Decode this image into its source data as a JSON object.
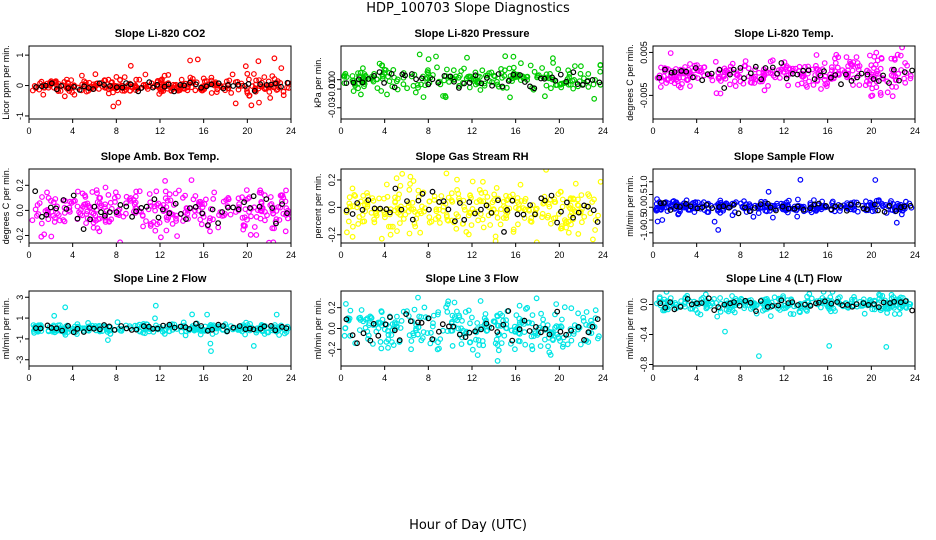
{
  "title": "HDP_100703  Slope Diagnostics",
  "x_axis_title": "Hour of Day (UTC)",
  "chart_data": [
    {
      "type": "scatter",
      "title": "Slope Li-820 CO2",
      "ylabel": "Licor ppm per min.",
      "color": "#ff0000",
      "xlim": [
        0,
        24
      ],
      "ylim": [
        -1.1,
        1.3
      ],
      "xticks": [
        0,
        4,
        8,
        12,
        16,
        20,
        24
      ],
      "yticks": [
        -1,
        0,
        1
      ],
      "ytick_labels": [
        "-1",
        "0",
        "1"
      ],
      "spread": 0.12,
      "outlier_amp": 0.9,
      "seed": 11,
      "dense": true
    },
    {
      "type": "scatter",
      "title": "Slope Li-820 Pressure",
      "ylabel": "kPa per min.",
      "color": "#00cc00",
      "xlim": [
        0,
        24
      ],
      "ylim": [
        -0.042,
        0.036
      ],
      "xticks": [
        0,
        4,
        8,
        12,
        16,
        20,
        24
      ],
      "yticks": [
        -0.03,
        -0.01,
        0.0
      ],
      "ytick_labels": [
        "-0.03",
        "-0.01",
        "0.00"
      ],
      "spread": 0.007,
      "outlier_amp": 0.03,
      "seed": 23,
      "dense": false
    },
    {
      "type": "scatter",
      "title": "Slope Li-820 Temp.",
      "ylabel": "degrees C per min.",
      "color": "#ff00ff",
      "xlim": [
        0,
        24
      ],
      "ylim": [
        -0.0105,
        0.0065
      ],
      "xticks": [
        0,
        4,
        8,
        12,
        16,
        20,
        24
      ],
      "yticks": [
        -0.005,
        0.005
      ],
      "ytick_labels": [
        "-0.005",
        "0.005"
      ],
      "spread": 0.0016,
      "outlier_amp": 0.005,
      "seed": 37,
      "dense": true
    },
    {
      "type": "scatter",
      "title": "Slope Amb. Box Temp.",
      "ylabel": "degrees C per min.",
      "color": "#ff00ff",
      "xlim": [
        0,
        24
      ],
      "ylim": [
        -0.26,
        0.33
      ],
      "xticks": [
        0,
        4,
        8,
        12,
        16,
        20,
        24
      ],
      "yticks": [
        -0.2,
        0.0,
        0.2
      ],
      "ytick_labels": [
        "-0.2",
        "0.0",
        "0.2"
      ],
      "spread": 0.09,
      "outlier_amp": 0.1,
      "seed": 41,
      "dense": true
    },
    {
      "type": "scatter",
      "title": "Slope Gas Stream RH",
      "ylabel": "percent per min.",
      "color": "#ffff00",
      "xlim": [
        0,
        24
      ],
      "ylim": [
        -0.26,
        0.28
      ],
      "xticks": [
        0,
        4,
        8,
        12,
        16,
        20,
        24
      ],
      "yticks": [
        -0.2,
        0.0,
        0.2
      ],
      "ytick_labels": [
        "-0.2",
        "0.0",
        "0.2"
      ],
      "spread": 0.1,
      "outlier_amp": 0.08,
      "seed": 53,
      "dense": true
    },
    {
      "type": "scatter",
      "title": "Slope Sample Flow",
      "ylabel": "ml/min per min.",
      "color": "#0000ff",
      "xlim": [
        0,
        24
      ],
      "ylim": [
        -1.4,
        1.5
      ],
      "xticks": [
        0,
        4,
        8,
        12,
        16,
        20,
        24
      ],
      "yticks": [
        -1.0,
        -0.5,
        0.0,
        0.5,
        1.0
      ],
      "ytick_labels": [
        "-1.0",
        "-0.5",
        "0.0",
        "0.5",
        "1.0"
      ],
      "spread": 0.12,
      "outlier_amp": 1.1,
      "seed": 67,
      "dense": true
    },
    {
      "type": "scatter",
      "title": "Slope Line 2 Flow",
      "ylabel": "ml/min per min.",
      "color": "#00e5e5",
      "xlim": [
        0,
        24
      ],
      "ylim": [
        -3.6,
        3.6
      ],
      "xticks": [
        0,
        4,
        8,
        12,
        16,
        20,
        24
      ],
      "yticks": [
        -3,
        -1,
        1,
        3
      ],
      "ytick_labels": [
        "-3",
        "-1",
        "1",
        "3"
      ],
      "spread": 0.25,
      "outlier_amp": 2.5,
      "seed": 71,
      "dense": true
    },
    {
      "type": "scatter",
      "title": "Slope Line 3 Flow",
      "ylabel": "ml/min per min.",
      "color": "#00e5e5",
      "xlim": [
        0,
        24
      ],
      "ylim": [
        -0.36,
        0.36
      ],
      "xticks": [
        0,
        4,
        8,
        12,
        16,
        20,
        24
      ],
      "yticks": [
        -0.2,
        0.0,
        0.2
      ],
      "ytick_labels": [
        "-0.2",
        "0.0",
        "0.2"
      ],
      "spread": 0.12,
      "outlier_amp": 0.12,
      "seed": 83,
      "dense": true
    },
    {
      "type": "scatter",
      "title": "Slope Line 4 (LT) Flow",
      "ylabel": "ml/min per min.",
      "color": "#00e5e5",
      "xlim": [
        0,
        24
      ],
      "ylim": [
        -0.82,
        0.18
      ],
      "xticks": [
        0,
        4,
        8,
        12,
        16,
        20,
        24
      ],
      "yticks": [
        -0.8,
        -0.4,
        0.0
      ],
      "ytick_labels": [
        "-0.8",
        "-0.4",
        "0.0"
      ],
      "spread": 0.06,
      "outlier_amp": 0.7,
      "seed": 97,
      "dense": true
    }
  ]
}
